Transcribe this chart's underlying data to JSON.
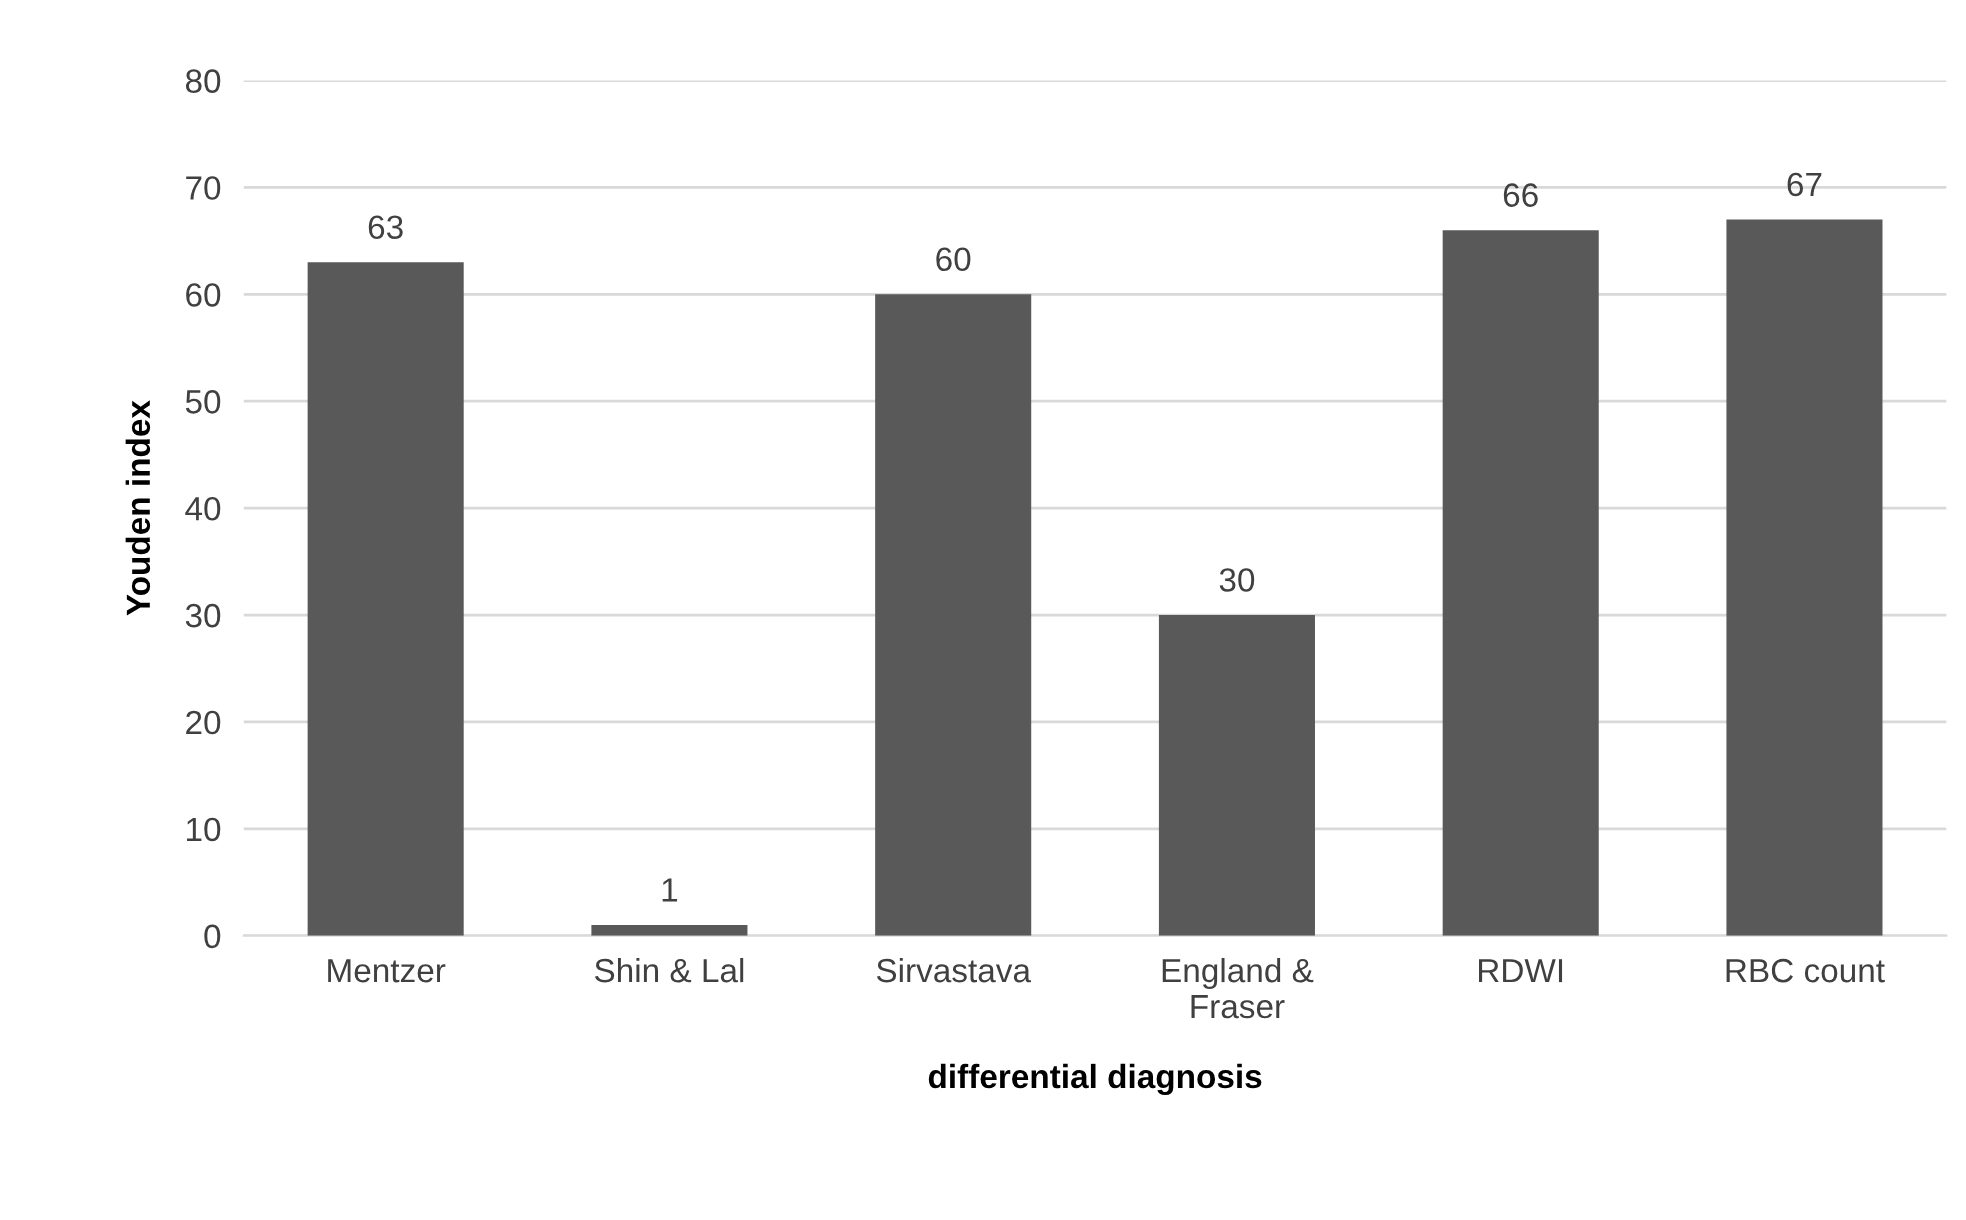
{
  "chart_data": {
    "type": "bar",
    "xlabel": "differential diagnosis",
    "ylabel": "Youden index",
    "categories": [
      "Mentzer",
      "Shin & Lal",
      "Sirvastava",
      "England &\nFraser",
      "RDWI",
      "RBC count"
    ],
    "values": [
      63,
      1,
      60,
      30,
      66,
      67
    ],
    "color": "#595959",
    "ylim": [
      0,
      80
    ],
    "yticks": [
      0,
      10,
      20,
      30,
      40,
      50,
      60,
      70,
      80
    ],
    "grid": "y",
    "data_labels": true,
    "legend": false
  }
}
